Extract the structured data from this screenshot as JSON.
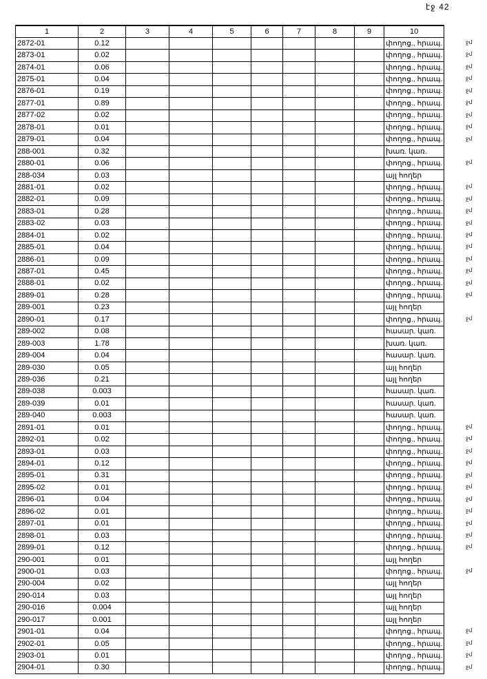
{
  "page_label": "էջ 42",
  "table": {
    "headers": [
      "1",
      "2",
      "3",
      "4",
      "5",
      "6",
      "7",
      "8",
      "9",
      "10"
    ],
    "rows": [
      [
        "2872-01",
        "0.12",
        "փողոց., հրապ.",
        true
      ],
      [
        "2873-01",
        "0.02",
        "փողոց., հրապ.",
        true
      ],
      [
        "2874-01",
        "0.06",
        "փողոց., հրապ.",
        true
      ],
      [
        "2875-01",
        "0.04",
        "փողոց., հրապ.",
        true
      ],
      [
        "2876-01",
        "0.19",
        "փողոց., հրապ.",
        true
      ],
      [
        "2877-01",
        "0.89",
        "փողոց., հրապ.",
        true
      ],
      [
        "2877-02",
        "0.02",
        "փողոց., հրապ.",
        true
      ],
      [
        "2878-01",
        "0.01",
        "փողոց., հրապ.",
        true
      ],
      [
        "2879-01",
        "0.04",
        "փողոց., հրապ.",
        true
      ],
      [
        "288-001",
        "0.32",
        "խառ. կառ.",
        false
      ],
      [
        "2880-01",
        "0.06",
        "փողոց., հրապ.",
        true
      ],
      [
        "288-034",
        "0.03",
        "այլ հողեր",
        false
      ],
      [
        "2881-01",
        "0.02",
        "փողոց., հրապ.",
        true
      ],
      [
        "2882-01",
        "0.09",
        "փողոց., հրապ.",
        true
      ],
      [
        "2883-01",
        "0.28",
        "փողոց., հրապ.",
        true
      ],
      [
        "2883-02",
        "0.03",
        "փողոց., հրապ.",
        true
      ],
      [
        "2884-01",
        "0.02",
        "փողոց., հրապ.",
        true
      ],
      [
        "2885-01",
        "0.04",
        "փողոց., հրապ.",
        true
      ],
      [
        "2886-01",
        "0.09",
        "փողոց., հրապ.",
        true
      ],
      [
        "2887-01",
        "0.45",
        "փողոց., հրապ.",
        true
      ],
      [
        "2888-01",
        "0.02",
        "փողոց., հրապ.",
        true
      ],
      [
        "2889-01",
        "0.28",
        "փողոց., հրապ.",
        true
      ],
      [
        "289-001",
        "0.23",
        "այլ հողեր",
        false
      ],
      [
        "2890-01",
        "0.17",
        "փողոց., հրապ.",
        true
      ],
      [
        "289-002",
        "0.08",
        "հասար. կառ.",
        false
      ],
      [
        "289-003",
        "1.78",
        "խառ. կառ.",
        false
      ],
      [
        "289-004",
        "0.04",
        "հասար. կառ.",
        false
      ],
      [
        "289-030",
        "0.05",
        "այլ հողեր",
        false
      ],
      [
        "289-036",
        "0.21",
        "այլ հողեր",
        false
      ],
      [
        "289-038",
        "0.003",
        "հասար. կառ.",
        false
      ],
      [
        "289-039",
        "0.01",
        "հասար. կառ.",
        false
      ],
      [
        "289-040",
        "0.003",
        "հասար. կառ.",
        false
      ],
      [
        "2891-01",
        "0.01",
        "փողոց., հրապ.",
        true
      ],
      [
        "2892-01",
        "0.02",
        "փողոց., հրապ.",
        true
      ],
      [
        "2893-01",
        "0.03",
        "փողոց., հրապ.",
        true
      ],
      [
        "2894-01",
        "0.12",
        "փողոց., հրապ.",
        true
      ],
      [
        "2895-01",
        "0.31",
        "փողոց., հրապ.",
        true
      ],
      [
        "2895-02",
        "0.01",
        "փողոց., հրապ.",
        true
      ],
      [
        "2896-01",
        "0.04",
        "փողոց., հրապ.",
        true
      ],
      [
        "2896-02",
        "0.01",
        "փողոց., հրապ.",
        true
      ],
      [
        "2897-01",
        "0.01",
        "փողոց., հրապ.",
        true
      ],
      [
        "2898-01",
        "0.03",
        "փողոց., հրապ.",
        true
      ],
      [
        "2899-01",
        "0.12",
        "փողոց., հրապ.",
        true
      ],
      [
        "290-001",
        "0.01",
        "այլ հողեր",
        false
      ],
      [
        "2900-01",
        "0.03",
        "փողոց., հրապ.",
        true
      ],
      [
        "290-004",
        "0.02",
        "այլ հողեր",
        false
      ],
      [
        "290-014",
        "0.03",
        "այլ հողեր",
        false
      ],
      [
        "290-016",
        "0.004",
        "այլ հողեր",
        false
      ],
      [
        "290-017",
        "0.001",
        "այլ հողեր",
        false
      ],
      [
        "2901-01",
        "0.04",
        "փողոց., հրապ.",
        true
      ],
      [
        "2902-01",
        "0.05",
        "փողոց., հրապ.",
        true
      ],
      [
        "2903-01",
        "0.01",
        "փողոց., հրապ.",
        true
      ],
      [
        "2904-01",
        "0.30",
        "փողոց., հրապ.",
        true
      ]
    ]
  },
  "margin_mark": "ջմ"
}
